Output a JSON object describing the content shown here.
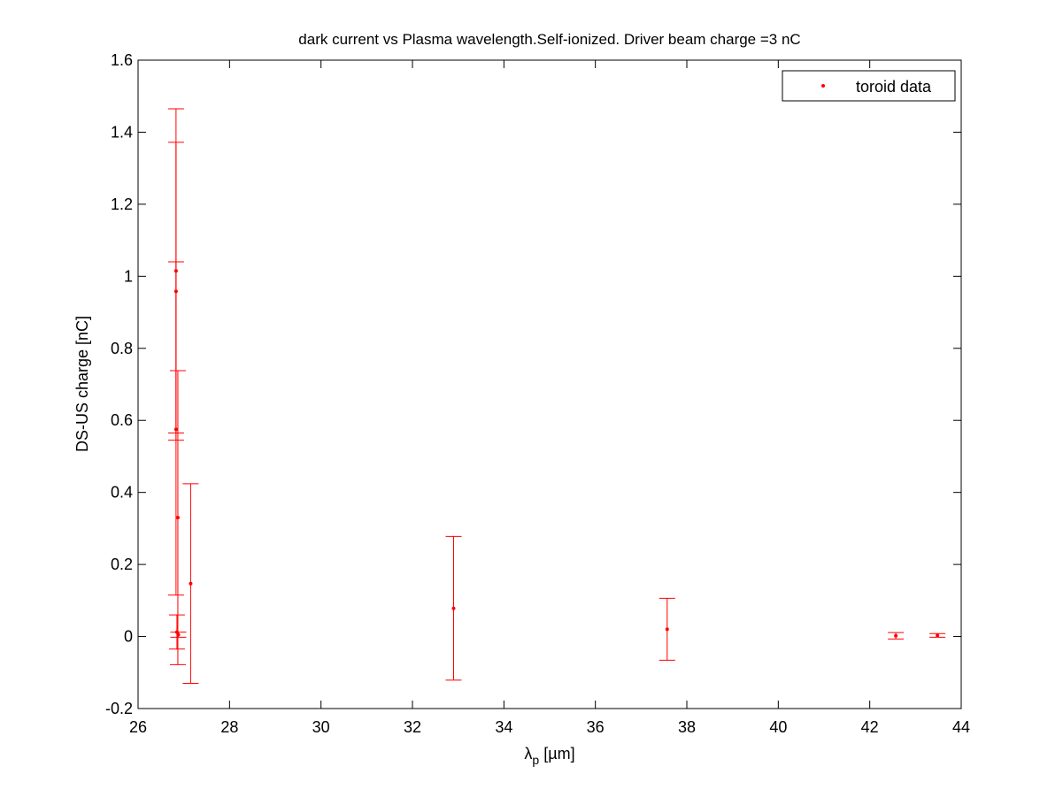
{
  "chart_data": {
    "type": "scatter",
    "title": "dark current vs Plasma wavelength.Self-ionized. Driver beam charge =3 nC",
    "xlabel_main": "λ",
    "xlabel_sub": "p",
    "xlabel_rest": " [µm]",
    "ylabel": "DS-US charge [nC]",
    "xlim": [
      26,
      44
    ],
    "ylim": [
      -0.2,
      1.6
    ],
    "xticks": [
      "26",
      "28",
      "30",
      "32",
      "34",
      "36",
      "38",
      "40",
      "42",
      "44"
    ],
    "yticks": [
      "-0.2",
      "0",
      "0.2",
      "0.4",
      "0.6",
      "0.8",
      "1",
      "1.2",
      "1.4",
      "1.6"
    ],
    "grid": false,
    "legend_position": "top-right",
    "series": [
      {
        "name": "toroid data",
        "color": "#ff0000",
        "marker": "point",
        "error_bars": true,
        "points": [
          {
            "x": 26.83,
            "y": 1.015,
            "low": 0.565,
            "high": 1.465
          },
          {
            "x": 26.83,
            "y": 0.958,
            "low": 0.545,
            "high": 1.372
          },
          {
            "x": 26.83,
            "y": 0.575,
            "low": 0.115,
            "high": 1.04
          },
          {
            "x": 26.87,
            "y": 0.33,
            "low": -0.078,
            "high": 0.738
          },
          {
            "x": 26.85,
            "y": 0.012,
            "low": -0.035,
            "high": 0.06
          },
          {
            "x": 26.88,
            "y": 0.005,
            "low": -0.002,
            "high": 0.012
          },
          {
            "x": 27.15,
            "y": 0.147,
            "low": -0.13,
            "high": 0.424
          },
          {
            "x": 32.9,
            "y": 0.078,
            "low": -0.121,
            "high": 0.278
          },
          {
            "x": 37.57,
            "y": 0.02,
            "low": -0.066,
            "high": 0.106
          },
          {
            "x": 42.57,
            "y": 0.002,
            "low": -0.007,
            "high": 0.011
          },
          {
            "x": 43.48,
            "y": 0.003,
            "low": -0.002,
            "high": 0.008
          }
        ]
      }
    ]
  }
}
